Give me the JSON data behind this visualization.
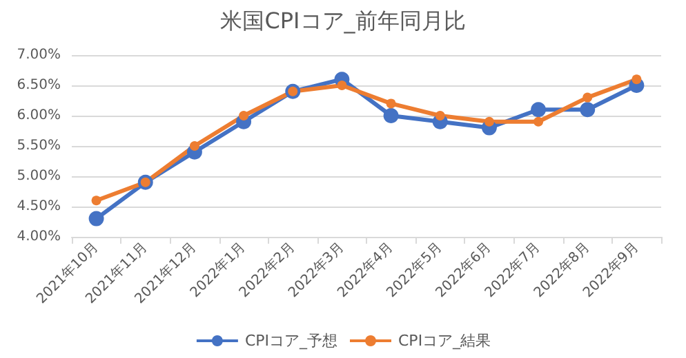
{
  "chart_data": {
    "type": "line",
    "title": "米国CPIコア_前年同月比",
    "categories": [
      "2021年10月",
      "2021年11月",
      "2021年12月",
      "2022年1月",
      "2022年2月",
      "2022年3月",
      "2022年4月",
      "2022年5月",
      "2022年6月",
      "2022年7月",
      "2022年8月",
      "2022年9月"
    ],
    "series": [
      {
        "name": "CPIコア_予想",
        "color": "#4472c4",
        "values": [
          4.3,
          4.9,
          5.4,
          5.9,
          6.4,
          6.6,
          6.0,
          5.9,
          5.8,
          6.1,
          6.1,
          6.5
        ]
      },
      {
        "name": "CPIコア_結果",
        "color": "#ed7d31",
        "values": [
          4.6,
          4.9,
          5.5,
          6.0,
          6.4,
          6.5,
          6.2,
          6.0,
          5.9,
          5.9,
          6.3,
          6.6
        ]
      }
    ],
    "ylim": [
      4,
      7
    ],
    "yticks": [
      {
        "value": 4,
        "label": "4.00%"
      },
      {
        "value": 4.5,
        "label": "4.50%"
      },
      {
        "value": 5,
        "label": "5.00%"
      },
      {
        "value": 5.5,
        "label": "5.50%"
      },
      {
        "value": 6,
        "label": "6.00%"
      },
      {
        "value": 6.5,
        "label": "6.50%"
      },
      {
        "value": 7,
        "label": "7.00%"
      }
    ],
    "grid": "y",
    "legend": "bottom",
    "marker": "circle",
    "line_style": "solid"
  }
}
